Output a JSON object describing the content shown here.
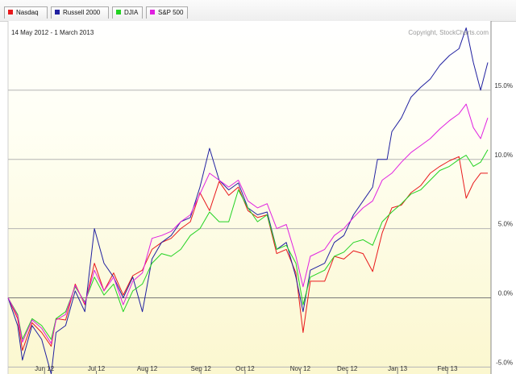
{
  "legend": {
    "items": [
      {
        "label": "Nasdaq",
        "color": "#e8181b"
      },
      {
        "label": "Russell 2000",
        "color": "#2020a0"
      },
      {
        "label": "DJIA",
        "color": "#22d222"
      },
      {
        "label": "S&P 500",
        "color": "#e020e0"
      }
    ]
  },
  "header": {
    "date_range": "14 May 2012 - 1 March 2013",
    "copyright": "Copyright, StockCharts.com"
  },
  "chart_data": {
    "type": "line",
    "date_range": "14 May 2012 - 1 March 2013",
    "ylim": [
      -5.5,
      20
    ],
    "y_unit": "%",
    "yticks": [
      {
        "value": 15,
        "label": "15.0%"
      },
      {
        "value": 10,
        "label": "10.0%"
      },
      {
        "value": 5,
        "label": "5.0%"
      },
      {
        "value": 0,
        "label": "0.0%"
      },
      {
        "value": -5,
        "label": "-5.0%"
      }
    ],
    "xticks": [
      {
        "t": 0.076,
        "label": "Jun 12"
      },
      {
        "t": 0.184,
        "label": "Jul 12"
      },
      {
        "t": 0.29,
        "label": "Aug 12"
      },
      {
        "t": 0.402,
        "label": "Sep 12"
      },
      {
        "t": 0.494,
        "label": "Oct 12"
      },
      {
        "t": 0.609,
        "label": "Nov 12"
      },
      {
        "t": 0.707,
        "label": "Dec 12"
      },
      {
        "t": 0.812,
        "label": "Jan 13"
      },
      {
        "t": 0.916,
        "label": "Feb 13"
      }
    ],
    "grid": "horizontal",
    "legend_position": "top",
    "series": [
      {
        "name": "Nasdaq",
        "color": "#e8181b",
        "points": [
          [
            0,
            0
          ],
          [
            0.02,
            -1.5
          ],
          [
            0.03,
            -3.8
          ],
          [
            0.05,
            -1.8
          ],
          [
            0.07,
            -2.5
          ],
          [
            0.09,
            -3.5
          ],
          [
            0.1,
            -1.5
          ],
          [
            0.12,
            -1.6
          ],
          [
            0.14,
            1.0
          ],
          [
            0.16,
            -0.5
          ],
          [
            0.18,
            2.5
          ],
          [
            0.2,
            0.5
          ],
          [
            0.22,
            1.8
          ],
          [
            0.24,
            0.2
          ],
          [
            0.26,
            1.6
          ],
          [
            0.28,
            2.0
          ],
          [
            0.3,
            3.5
          ],
          [
            0.32,
            4.0
          ],
          [
            0.34,
            4.3
          ],
          [
            0.36,
            5.0
          ],
          [
            0.38,
            5.5
          ],
          [
            0.4,
            7.6
          ],
          [
            0.42,
            6.3
          ],
          [
            0.44,
            8.4
          ],
          [
            0.46,
            7.4
          ],
          [
            0.48,
            8.0
          ],
          [
            0.5,
            6.3
          ],
          [
            0.52,
            5.8
          ],
          [
            0.54,
            6.0
          ],
          [
            0.56,
            3.2
          ],
          [
            0.58,
            3.5
          ],
          [
            0.6,
            1.8
          ],
          [
            0.615,
            -2.5
          ],
          [
            0.63,
            1.2
          ],
          [
            0.66,
            1.2
          ],
          [
            0.68,
            3.0
          ],
          [
            0.7,
            2.8
          ],
          [
            0.72,
            3.4
          ],
          [
            0.74,
            3.2
          ],
          [
            0.76,
            1.9
          ],
          [
            0.78,
            4.7
          ],
          [
            0.8,
            6.5
          ],
          [
            0.82,
            6.7
          ],
          [
            0.84,
            7.6
          ],
          [
            0.86,
            8.1
          ],
          [
            0.88,
            9.0
          ],
          [
            0.9,
            9.5
          ],
          [
            0.92,
            9.9
          ],
          [
            0.94,
            10.2
          ],
          [
            0.955,
            7.2
          ],
          [
            0.97,
            8.3
          ],
          [
            0.985,
            9.0
          ],
          [
            1,
            9.0
          ]
        ]
      },
      {
        "name": "Russell 2000",
        "color": "#2020a0",
        "points": [
          [
            0,
            0
          ],
          [
            0.02,
            -2.0
          ],
          [
            0.03,
            -4.5
          ],
          [
            0.05,
            -2.0
          ],
          [
            0.07,
            -3.0
          ],
          [
            0.09,
            -5.5
          ],
          [
            0.1,
            -2.5
          ],
          [
            0.12,
            -2.0
          ],
          [
            0.14,
            0.5
          ],
          [
            0.16,
            -1.0
          ],
          [
            0.18,
            5.0
          ],
          [
            0.2,
            2.5
          ],
          [
            0.22,
            1.5
          ],
          [
            0.24,
            0.0
          ],
          [
            0.26,
            1.5
          ],
          [
            0.28,
            -1.0
          ],
          [
            0.3,
            2.8
          ],
          [
            0.32,
            4.0
          ],
          [
            0.34,
            4.5
          ],
          [
            0.36,
            5.5
          ],
          [
            0.38,
            5.8
          ],
          [
            0.4,
            8.0
          ],
          [
            0.42,
            10.8
          ],
          [
            0.44,
            8.5
          ],
          [
            0.46,
            7.8
          ],
          [
            0.48,
            8.3
          ],
          [
            0.5,
            6.5
          ],
          [
            0.52,
            6.0
          ],
          [
            0.54,
            6.2
          ],
          [
            0.56,
            3.5
          ],
          [
            0.58,
            4.0
          ],
          [
            0.6,
            1.5
          ],
          [
            0.615,
            -1.0
          ],
          [
            0.63,
            2.0
          ],
          [
            0.66,
            2.5
          ],
          [
            0.68,
            4.0
          ],
          [
            0.7,
            4.5
          ],
          [
            0.72,
            6.0
          ],
          [
            0.74,
            7.0
          ],
          [
            0.76,
            8.0
          ],
          [
            0.77,
            10.0
          ],
          [
            0.79,
            10.0
          ],
          [
            0.8,
            12.0
          ],
          [
            0.82,
            13.0
          ],
          [
            0.84,
            14.5
          ],
          [
            0.86,
            15.2
          ],
          [
            0.88,
            15.8
          ],
          [
            0.9,
            16.8
          ],
          [
            0.92,
            17.5
          ],
          [
            0.94,
            18.0
          ],
          [
            0.955,
            19.5
          ],
          [
            0.97,
            17.0
          ],
          [
            0.985,
            15.0
          ],
          [
            1,
            17.0
          ]
        ]
      },
      {
        "name": "DJIA",
        "color": "#22d222",
        "points": [
          [
            0,
            0
          ],
          [
            0.02,
            -1.2
          ],
          [
            0.03,
            -3.0
          ],
          [
            0.05,
            -1.5
          ],
          [
            0.07,
            -2.0
          ],
          [
            0.09,
            -3.0
          ],
          [
            0.1,
            -1.5
          ],
          [
            0.12,
            -1.0
          ],
          [
            0.14,
            0.8
          ],
          [
            0.16,
            -0.3
          ],
          [
            0.18,
            1.5
          ],
          [
            0.2,
            0.2
          ],
          [
            0.22,
            1.0
          ],
          [
            0.24,
            -1.0
          ],
          [
            0.26,
            0.5
          ],
          [
            0.28,
            1.0
          ],
          [
            0.3,
            2.5
          ],
          [
            0.32,
            3.2
          ],
          [
            0.34,
            3.0
          ],
          [
            0.36,
            3.5
          ],
          [
            0.38,
            4.5
          ],
          [
            0.4,
            5.0
          ],
          [
            0.42,
            6.2
          ],
          [
            0.44,
            5.5
          ],
          [
            0.46,
            5.5
          ],
          [
            0.48,
            7.8
          ],
          [
            0.5,
            6.5
          ],
          [
            0.52,
            5.5
          ],
          [
            0.54,
            6.0
          ],
          [
            0.56,
            3.5
          ],
          [
            0.58,
            3.8
          ],
          [
            0.6,
            2.5
          ],
          [
            0.615,
            -0.5
          ],
          [
            0.63,
            1.5
          ],
          [
            0.66,
            2.0
          ],
          [
            0.68,
            3.0
          ],
          [
            0.7,
            3.3
          ],
          [
            0.72,
            4.0
          ],
          [
            0.74,
            4.2
          ],
          [
            0.76,
            3.8
          ],
          [
            0.78,
            5.5
          ],
          [
            0.8,
            6.2
          ],
          [
            0.82,
            6.8
          ],
          [
            0.84,
            7.5
          ],
          [
            0.86,
            7.8
          ],
          [
            0.88,
            8.5
          ],
          [
            0.9,
            9.2
          ],
          [
            0.92,
            9.5
          ],
          [
            0.94,
            10.0
          ],
          [
            0.955,
            10.3
          ],
          [
            0.97,
            9.5
          ],
          [
            0.985,
            9.8
          ],
          [
            1,
            10.7
          ]
        ]
      },
      {
        "name": "S&P 500",
        "color": "#e020e0",
        "points": [
          [
            0,
            0
          ],
          [
            0.02,
            -1.3
          ],
          [
            0.03,
            -3.2
          ],
          [
            0.05,
            -1.6
          ],
          [
            0.07,
            -2.2
          ],
          [
            0.09,
            -3.3
          ],
          [
            0.1,
            -1.6
          ],
          [
            0.12,
            -1.2
          ],
          [
            0.14,
            0.9
          ],
          [
            0.16,
            -0.4
          ],
          [
            0.18,
            2.0
          ],
          [
            0.2,
            0.5
          ],
          [
            0.22,
            1.5
          ],
          [
            0.24,
            -0.5
          ],
          [
            0.26,
            1.2
          ],
          [
            0.28,
            1.8
          ],
          [
            0.3,
            4.3
          ],
          [
            0.32,
            4.5
          ],
          [
            0.34,
            4.8
          ],
          [
            0.36,
            5.5
          ],
          [
            0.38,
            6.0
          ],
          [
            0.4,
            7.5
          ],
          [
            0.42,
            9.0
          ],
          [
            0.44,
            8.5
          ],
          [
            0.46,
            8.0
          ],
          [
            0.48,
            8.5
          ],
          [
            0.5,
            7.0
          ],
          [
            0.52,
            6.5
          ],
          [
            0.54,
            6.8
          ],
          [
            0.56,
            5.0
          ],
          [
            0.58,
            5.3
          ],
          [
            0.6,
            3.0
          ],
          [
            0.615,
            0.8
          ],
          [
            0.63,
            3.0
          ],
          [
            0.66,
            3.5
          ],
          [
            0.68,
            4.5
          ],
          [
            0.7,
            5.0
          ],
          [
            0.72,
            5.8
          ],
          [
            0.74,
            6.5
          ],
          [
            0.76,
            7.0
          ],
          [
            0.78,
            8.5
          ],
          [
            0.8,
            9.0
          ],
          [
            0.82,
            9.8
          ],
          [
            0.84,
            10.5
          ],
          [
            0.86,
            11.0
          ],
          [
            0.88,
            11.5
          ],
          [
            0.9,
            12.2
          ],
          [
            0.92,
            12.8
          ],
          [
            0.94,
            13.3
          ],
          [
            0.955,
            14.0
          ],
          [
            0.97,
            12.3
          ],
          [
            0.985,
            11.5
          ],
          [
            1,
            13.0
          ]
        ]
      }
    ]
  }
}
